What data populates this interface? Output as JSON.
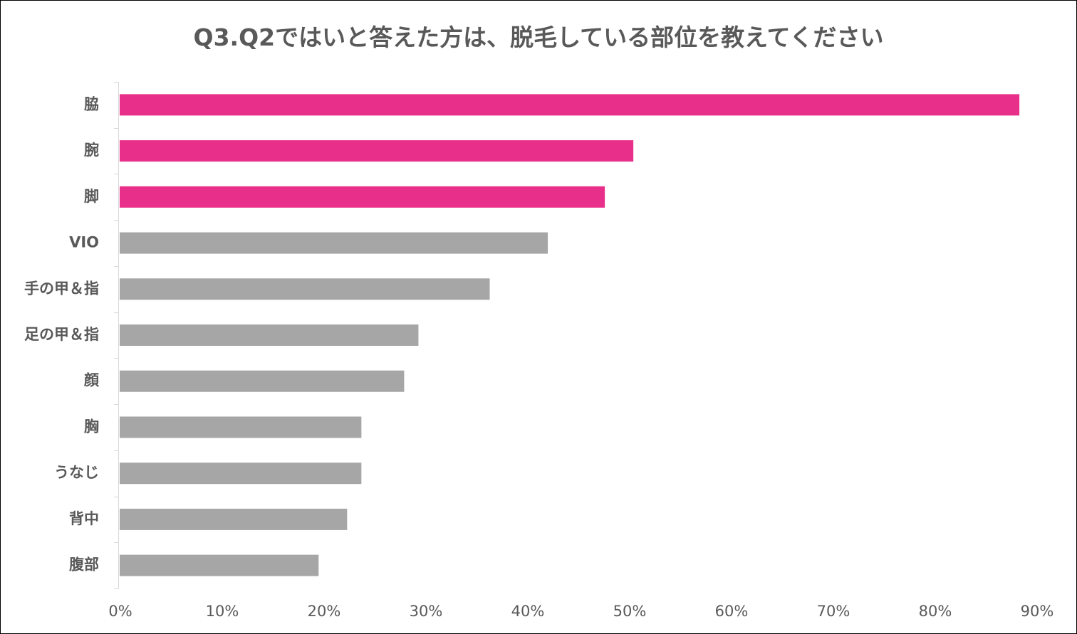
{
  "chart_data": {
    "type": "bar",
    "orientation": "horizontal",
    "title": "Q3.Q2ではいと答えた方は、脱毛している部位を教えてください",
    "xlabel": "",
    "ylabel": "",
    "categories": [
      "脇",
      "腕",
      "脚",
      "VIO",
      "手の甲＆指",
      "足の甲＆指",
      "顔",
      "胸",
      "うなじ",
      "背中",
      "腹部"
    ],
    "values": [
      88.4,
      50.5,
      47.7,
      42.1,
      36.4,
      29.4,
      28.0,
      23.8,
      23.8,
      22.4,
      19.6
    ],
    "highlight_count": 3,
    "colors": {
      "highlight": "#E8308A",
      "default": "#A6A6A6",
      "text": "#595959",
      "axis": "#D9D9D9"
    },
    "xlim": [
      0,
      90
    ],
    "x_ticks": [
      0,
      10,
      20,
      30,
      40,
      50,
      60,
      70,
      80,
      90
    ],
    "x_tick_labels": [
      "0%",
      "10%",
      "20%",
      "30%",
      "40%",
      "50%",
      "60%",
      "70%",
      "80%",
      "90%"
    ],
    "grid": false,
    "legend": "none"
  }
}
